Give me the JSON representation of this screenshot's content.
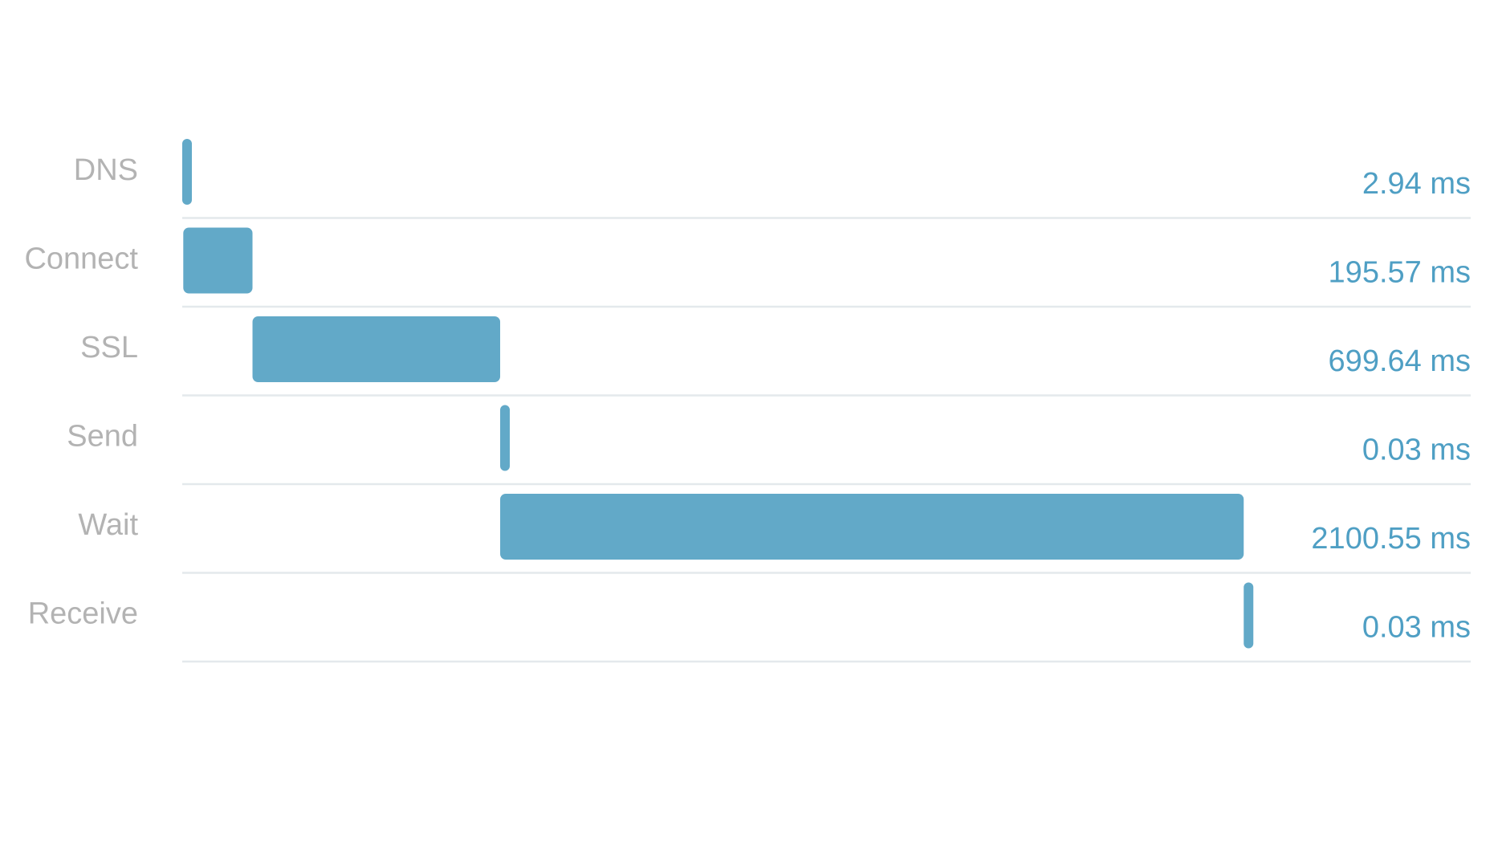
{
  "chart_data": {
    "type": "bar",
    "subtype": "waterfall-timing",
    "unit": "ms",
    "bar_color": "#62a9c8",
    "duration_color": "#4f9fc4",
    "label_color": "#b3b3b3",
    "gridline_color": "#e4e9ec",
    "categories": [
      "DNS",
      "Connect",
      "SSL",
      "Send",
      "Wait",
      "Receive"
    ],
    "starts": [
      0,
      2.94,
      198.51,
      898.15,
      898.18,
      2998.73
    ],
    "values": [
      2.94,
      195.57,
      699.64,
      0.03,
      2100.55,
      0.03
    ],
    "value_labels": [
      "2.94 ms",
      "195.57 ms",
      "699.64 ms",
      "0.03 ms",
      "2100.55 ms",
      "0.03 ms"
    ],
    "xlim": [
      0,
      3640
    ],
    "grid": true,
    "legend": "none"
  }
}
